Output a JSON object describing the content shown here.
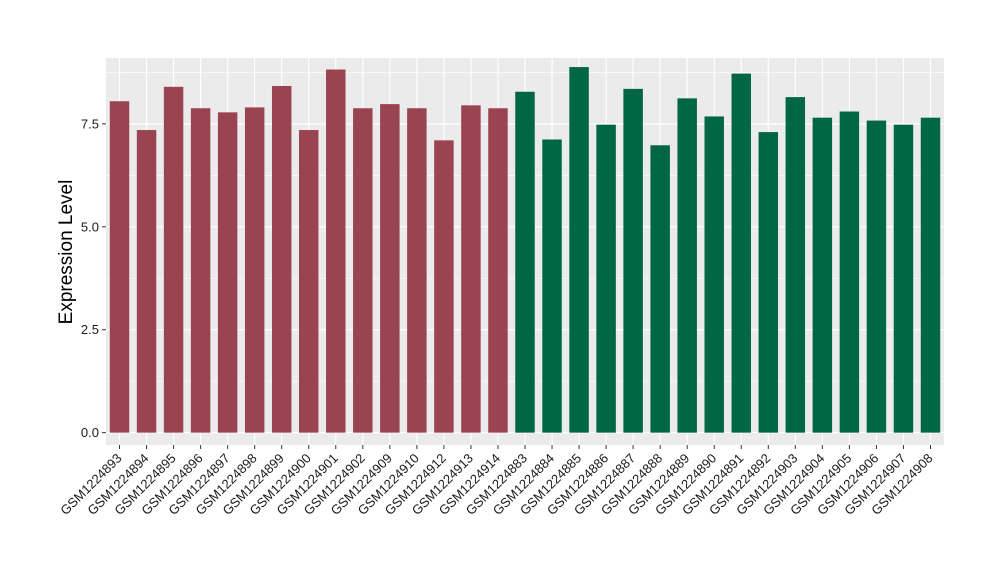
{
  "chart_data": {
    "type": "bar",
    "ylabel": "Expression Level",
    "xlabel": "",
    "ylim": [
      -0.3,
      9.1
    ],
    "yticks": [
      "0.0",
      "2.5",
      "5.0",
      "7.5"
    ],
    "grid": true,
    "colors": {
      "group1": "#994450",
      "group2": "#006644",
      "panel": "#ebebeb",
      "gridline": "#ffffff"
    },
    "categories": [
      "GSM1224893",
      "GSM1224894",
      "GSM1224895",
      "GSM1224896",
      "GSM1224897",
      "GSM1224898",
      "GSM1224899",
      "GSM1224900",
      "GSM1224901",
      "GSM1224902",
      "GSM1224909",
      "GSM1224910",
      "GSM1224912",
      "GSM1224913",
      "GSM1224914",
      "GSM1224883",
      "GSM1224884",
      "GSM1224885",
      "GSM1224886",
      "GSM1224887",
      "GSM1224888",
      "GSM1224889",
      "GSM1224890",
      "GSM1224891",
      "GSM1224892",
      "GSM1224903",
      "GSM1224904",
      "GSM1224905",
      "GSM1224906",
      "GSM1224907",
      "GSM1224908"
    ],
    "values": [
      8.05,
      7.35,
      8.4,
      7.88,
      7.78,
      7.9,
      8.42,
      7.35,
      8.82,
      7.88,
      7.98,
      7.88,
      7.1,
      7.95,
      7.88,
      8.28,
      7.12,
      8.88,
      7.48,
      8.35,
      6.98,
      8.12,
      7.68,
      8.72,
      7.3,
      8.15,
      7.65,
      7.8,
      7.58,
      7.48,
      7.65
    ],
    "groups": [
      1,
      1,
      1,
      1,
      1,
      1,
      1,
      1,
      1,
      1,
      1,
      1,
      1,
      1,
      1,
      2,
      2,
      2,
      2,
      2,
      2,
      2,
      2,
      2,
      2,
      2,
      2,
      2,
      2,
      2,
      2
    ]
  }
}
